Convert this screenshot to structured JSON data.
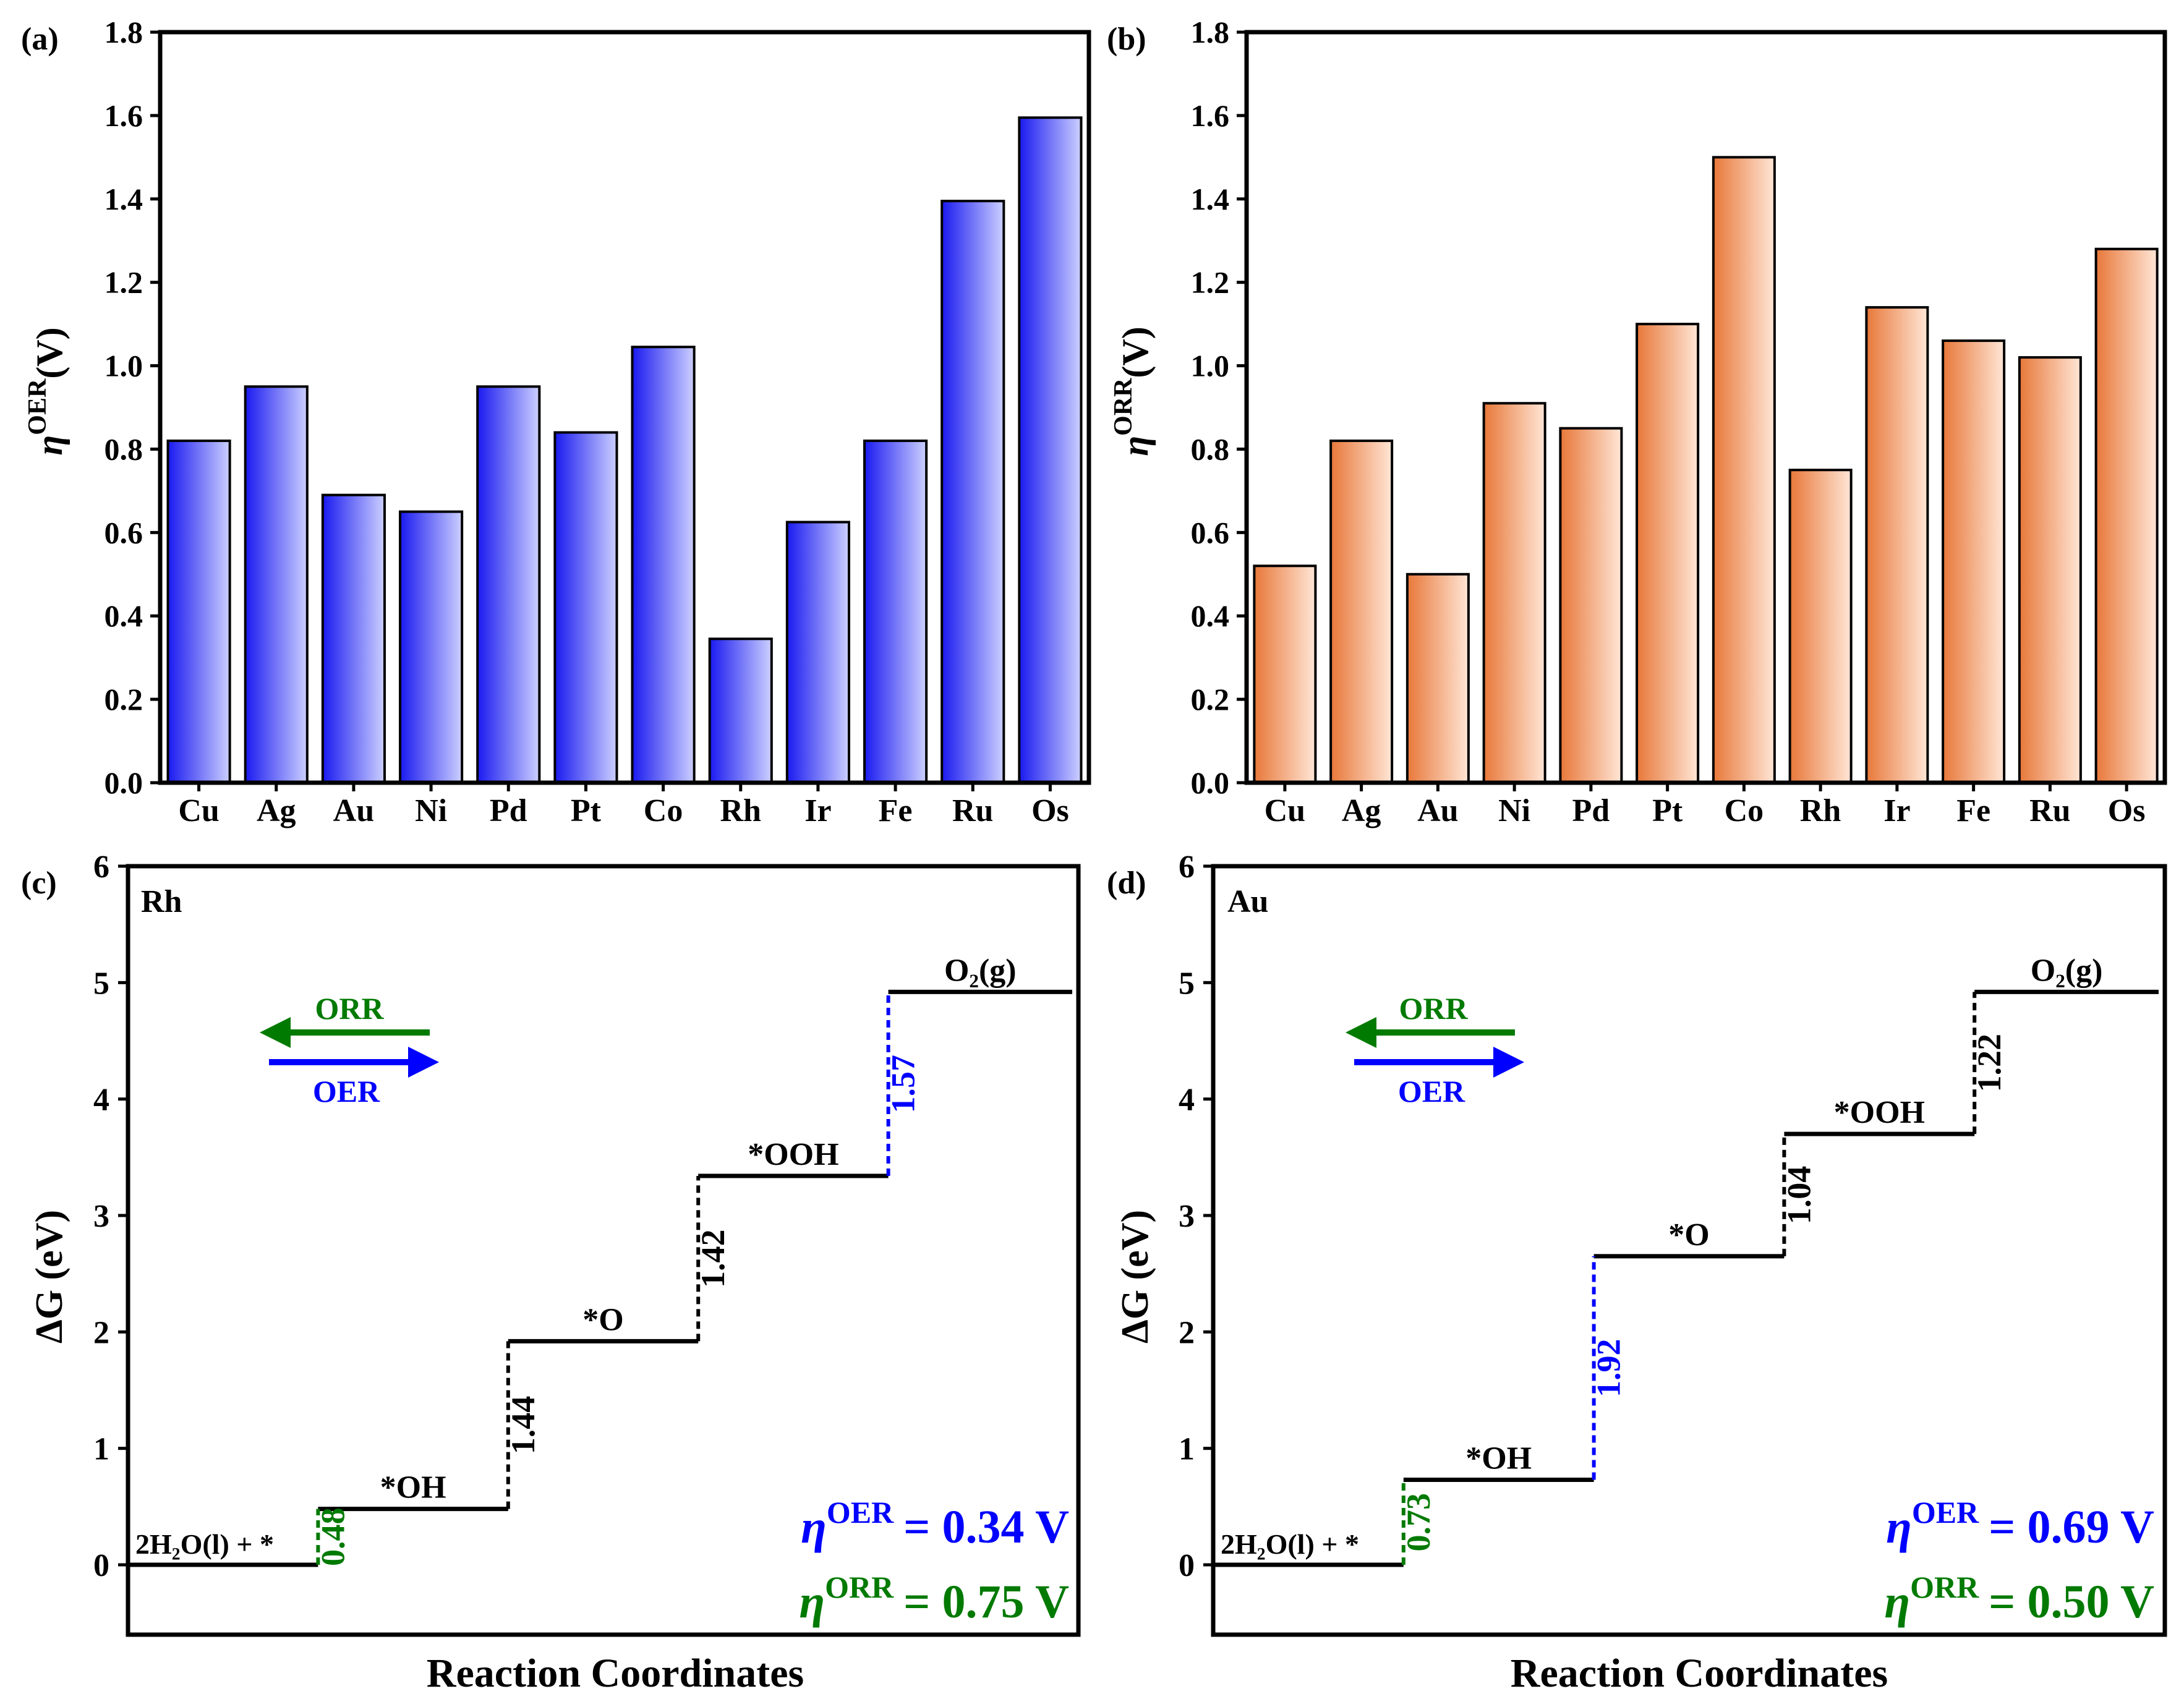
{
  "colors": {
    "oer_bar_dark": "#1a1af0",
    "oer_bar_light": "#ccd0ff",
    "orr_bar_dark": "#e8783a",
    "orr_bar_light": "#ffe6d6",
    "oer_blue": "#0000ff",
    "orr_green": "#007a00",
    "ink": "#000000"
  },
  "chart_data": [
    {
      "id": "a",
      "panel_label": "(a)",
      "type": "bar",
      "categories": [
        "Cu",
        "Ag",
        "Au",
        "Ni",
        "Pd",
        "Pt",
        "Co",
        "Rh",
        "Ir",
        "Fe",
        "Ru",
        "Os"
      ],
      "values": [
        0.82,
        0.95,
        0.69,
        0.65,
        0.95,
        0.84,
        1.045,
        0.345,
        0.625,
        0.82,
        1.395,
        1.595
      ],
      "ylabel": "η",
      "ylabel_sup": "OER",
      "ylabel_unit": "(V)",
      "ylim": [
        0,
        1.8
      ],
      "yticks": [
        "0.0",
        "0.2",
        "0.4",
        "0.6",
        "0.8",
        "1.0",
        "1.2",
        "1.4",
        "1.6",
        "1.8"
      ],
      "color": "oer"
    },
    {
      "id": "b",
      "panel_label": "(b)",
      "type": "bar",
      "categories": [
        "Cu",
        "Ag",
        "Au",
        "Ni",
        "Pd",
        "Pt",
        "Co",
        "Rh",
        "Ir",
        "Fe",
        "Ru",
        "Os"
      ],
      "values": [
        0.52,
        0.82,
        0.5,
        0.91,
        0.85,
        1.1,
        1.5,
        0.75,
        1.14,
        1.06,
        1.02,
        1.28
      ],
      "ylabel": "η",
      "ylabel_sup": "ORR",
      "ylabel_unit": "(V)",
      "ylim": [
        0,
        1.8
      ],
      "yticks": [
        "0.0",
        "0.2",
        "0.4",
        "0.6",
        "0.8",
        "1.0",
        "1.2",
        "1.4",
        "1.6",
        "1.8"
      ],
      "color": "orr"
    },
    {
      "id": "c",
      "panel_label": "(c)",
      "type": "line",
      "subtype": "free-energy-step",
      "catalyst": "Rh",
      "states": [
        "2H₂O(l) + *",
        "*OH",
        "*O",
        "*OOH",
        "O₂(g)"
      ],
      "energies": [
        0,
        0.48,
        1.92,
        3.34,
        4.92
      ],
      "steps": [
        {
          "label": "0.48",
          "color": "orr"
        },
        {
          "label": "1.44",
          "color": "ink"
        },
        {
          "label": "1.42",
          "color": "ink"
        },
        {
          "label": "1.57",
          "color": "oer"
        }
      ],
      "ylabel": "ΔG (eV)",
      "xlabel": "Reaction Coordinates",
      "ylim": [
        -0.6,
        6
      ],
      "yticks": [
        "0",
        "1",
        "2",
        "3",
        "4",
        "5",
        "6"
      ],
      "legend": {
        "orr": "ORR",
        "oer": "OER"
      },
      "eta_symbol": "η",
      "eta_oer_sup": "OER",
      "eta_oer_text": "= 0.34 V",
      "eta_orr_sup": "ORR",
      "eta_orr_text": "= 0.75 V"
    },
    {
      "id": "d",
      "panel_label": "(d)",
      "type": "line",
      "subtype": "free-energy-step",
      "catalyst": "Au",
      "states": [
        "2H₂O(l) + *",
        "*OH",
        "*O",
        "*OOH",
        "O₂(g)"
      ],
      "energies": [
        0,
        0.73,
        2.65,
        3.7,
        4.92
      ],
      "steps": [
        {
          "label": "0.73",
          "color": "orr"
        },
        {
          "label": "1.92",
          "color": "oer"
        },
        {
          "label": "1.04",
          "color": "ink"
        },
        {
          "label": "1.22",
          "color": "ink"
        }
      ],
      "ylabel": "ΔG (eV)",
      "xlabel": "Reaction Coordinates",
      "ylim": [
        -0.6,
        6
      ],
      "yticks": [
        "0",
        "1",
        "2",
        "3",
        "4",
        "5",
        "6"
      ],
      "legend": {
        "orr": "ORR",
        "oer": "OER"
      },
      "eta_symbol": "η",
      "eta_oer_sup": "OER",
      "eta_oer_text": "= 0.69 V",
      "eta_orr_sup": "ORR",
      "eta_orr_text": "= 0.50 V"
    }
  ]
}
